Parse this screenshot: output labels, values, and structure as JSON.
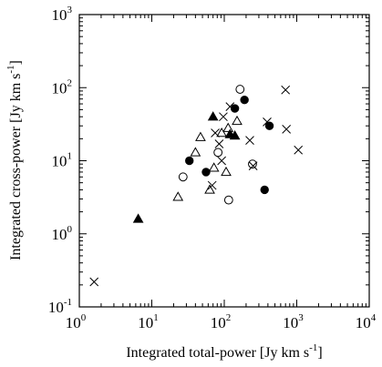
{
  "chart_data": {
    "type": "scatter",
    "title": "",
    "xlabel": "Integrated total-power [Jy km s",
    "xlabel_sup": "-1",
    "xlabel_end": "]",
    "ylabel": "Integrated cross-power [Jy km s",
    "ylabel_sup": "-1",
    "ylabel_end": "]",
    "xscale": "log",
    "yscale": "log",
    "xlim": [
      1,
      10000
    ],
    "ylim": [
      0.1,
      1000
    ],
    "grid": false,
    "legend": "none",
    "x_ticks": [
      {
        "base": "10",
        "exp": "0"
      },
      {
        "base": "10",
        "exp": "1"
      },
      {
        "base": "10",
        "exp": "2"
      },
      {
        "base": "10",
        "exp": "3"
      },
      {
        "base": "10",
        "exp": "4"
      }
    ],
    "y_ticks": [
      {
        "base": "10",
        "exp": "-1"
      },
      {
        "base": "10",
        "exp": "0"
      },
      {
        "base": "10",
        "exp": "1"
      },
      {
        "base": "10",
        "exp": "2"
      },
      {
        "base": "10",
        "exp": "3"
      }
    ],
    "series": [
      {
        "marker": "filled-circle",
        "points": [
          {
            "x": 33,
            "y": 10
          },
          {
            "x": 56,
            "y": 7
          },
          {
            "x": 140,
            "y": 52
          },
          {
            "x": 190,
            "y": 68
          },
          {
            "x": 360,
            "y": 4
          },
          {
            "x": 420,
            "y": 30
          }
        ]
      },
      {
        "marker": "open-circle",
        "points": [
          {
            "x": 27,
            "y": 6
          },
          {
            "x": 82,
            "y": 13
          },
          {
            "x": 115,
            "y": 2.9
          },
          {
            "x": 165,
            "y": 95
          },
          {
            "x": 245,
            "y": 9
          }
        ]
      },
      {
        "marker": "filled-triangle",
        "points": [
          {
            "x": 6.5,
            "y": 1.6
          },
          {
            "x": 70,
            "y": 40
          },
          {
            "x": 120,
            "y": 23
          },
          {
            "x": 140,
            "y": 22
          }
        ]
      },
      {
        "marker": "open-triangle",
        "points": [
          {
            "x": 23,
            "y": 3.2
          },
          {
            "x": 40,
            "y": 13
          },
          {
            "x": 47,
            "y": 21
          },
          {
            "x": 63,
            "y": 4
          },
          {
            "x": 72,
            "y": 8
          },
          {
            "x": 92,
            "y": 24
          },
          {
            "x": 106,
            "y": 7
          },
          {
            "x": 113,
            "y": 28
          },
          {
            "x": 150,
            "y": 35
          }
        ]
      },
      {
        "marker": "cross",
        "points": [
          {
            "x": 1.6,
            "y": 0.22
          },
          {
            "x": 68,
            "y": 4.6
          },
          {
            "x": 75,
            "y": 24
          },
          {
            "x": 85,
            "y": 17
          },
          {
            "x": 92,
            "y": 10
          },
          {
            "x": 97,
            "y": 40
          },
          {
            "x": 120,
            "y": 55
          },
          {
            "x": 225,
            "y": 19
          },
          {
            "x": 250,
            "y": 8.5
          },
          {
            "x": 390,
            "y": 34
          },
          {
            "x": 700,
            "y": 93
          },
          {
            "x": 720,
            "y": 27
          },
          {
            "x": 1050,
            "y": 14
          }
        ]
      }
    ]
  }
}
